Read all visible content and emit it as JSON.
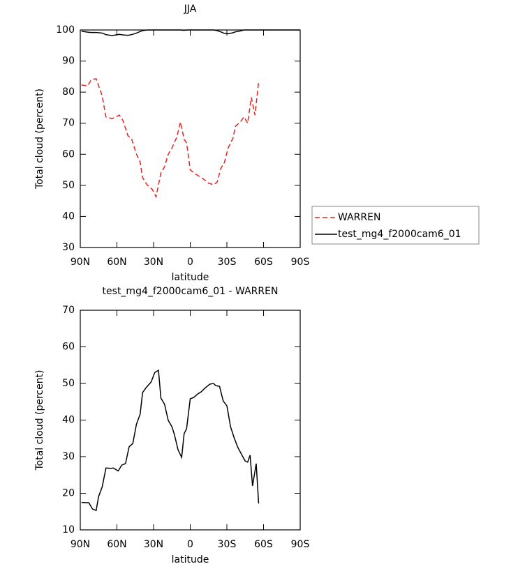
{
  "chart_data": [
    {
      "type": "line",
      "title": "JJA",
      "x_label": "latitude",
      "y_label": "Total cloud (percent)",
      "x": [
        89,
        84,
        81,
        77,
        72,
        69,
        64,
        61,
        58,
        55,
        51,
        48,
        44,
        41,
        39,
        35,
        31,
        28,
        24,
        21,
        18,
        15,
        11,
        8,
        5,
        3,
        0,
        -3,
        -7,
        -10,
        -15,
        -19,
        -22,
        -25,
        -28,
        -31,
        -35,
        -37,
        -41,
        -44,
        -47,
        -50,
        -53,
        -56,
        -60,
        -70,
        -80,
        -90
      ],
      "series": [
        {
          "name": "WARREN",
          "color": "#e8211d",
          "dashed": true,
          "values": [
            82.3,
            82,
            84,
            84.3,
            78.7,
            72,
            71.5,
            72,
            72.6,
            70.8,
            66,
            65,
            60,
            57.5,
            52.5,
            50,
            48.7,
            46.3,
            54,
            56,
            60,
            62,
            65.5,
            70.4,
            64.8,
            63.7,
            55,
            54,
            53,
            52.3,
            50.7,
            50.2,
            51,
            55.4,
            57.4,
            62,
            65.2,
            69,
            70.4,
            72,
            70,
            78.3,
            72.6,
            83.4,
            null,
            null,
            null,
            null
          ]
        },
        {
          "name": "test_mg4_f2000cam6_01",
          "color": "#000000",
          "dashed": false,
          "values": [
            99.6,
            99.3,
            99.2,
            99.2,
            99,
            98.5,
            98.2,
            98.4,
            98.6,
            98.4,
            98.3,
            98.5,
            99,
            99.5,
            99.8,
            100,
            100,
            100,
            100,
            100,
            100,
            100,
            100,
            100,
            99.9,
            100,
            100,
            100,
            100,
            100,
            100,
            100,
            99.8,
            99.4,
            98.9,
            98.8,
            99.1,
            99.4,
            99.7,
            100,
            100,
            100,
            100,
            100,
            100,
            100,
            100,
            100
          ]
        }
      ],
      "xlim": [
        90,
        -90
      ],
      "xticks": [
        {
          "value": 90,
          "label": "90N"
        },
        {
          "value": 60,
          "label": "60N"
        },
        {
          "value": 30,
          "label": "30N"
        },
        0,
        {
          "value": -30,
          "label": "30S"
        },
        {
          "value": -60,
          "label": "60S"
        },
        {
          "value": -90,
          "label": "90S"
        }
      ],
      "ylim": [
        30,
        100
      ],
      "yticks": [
        30,
        40,
        50,
        60,
        70,
        80,
        90,
        100
      ]
    },
    {
      "type": "line",
      "title": "test_mg4_f2000cam6_01 - WARREN",
      "x_label": "latitude",
      "y_label": "Total cloud (percent)",
      "x": [
        89,
        83,
        80,
        77,
        75,
        72,
        69,
        65,
        63,
        59,
        56,
        53,
        50,
        47,
        44,
        41,
        39,
        36,
        32,
        29,
        26,
        24,
        21,
        18,
        15,
        13,
        10,
        7,
        5,
        3,
        0,
        -3,
        -6,
        -9,
        -12,
        -16,
        -19,
        -21,
        -24,
        -27,
        -30,
        -33,
        -36,
        -39,
        -43,
        -45,
        -47,
        -49,
        -51,
        -54,
        -56
      ],
      "color": "#000000",
      "values": [
        17.5,
        17.4,
        15.7,
        15.3,
        19.1,
        21.8,
        26.9,
        26.8,
        26.9,
        26.1,
        27.7,
        28.1,
        32.7,
        33.6,
        38.9,
        41.6,
        47.5,
        48.9,
        50.4,
        53,
        53.6,
        46,
        44.3,
        39.9,
        38.2,
        36.1,
        31.9,
        29.8,
        36.3,
        37.6,
        45.8,
        46.2,
        47.1,
        47.7,
        48.7,
        49.8,
        50,
        49.4,
        49.2,
        45.2,
        43.9,
        38.2,
        35.1,
        32.5,
        30,
        28.8,
        28.5,
        30.4,
        22,
        28.1,
        17.2
      ],
      "xlim": [
        90,
        -90
      ],
      "xticks": [
        {
          "value": 90,
          "label": "90N"
        },
        {
          "value": 60,
          "label": "60N"
        },
        {
          "value": 30,
          "label": "30N"
        },
        0,
        {
          "value": -30,
          "label": "30S"
        },
        {
          "value": -60,
          "label": "60S"
        },
        {
          "value": -90,
          "label": "90S"
        }
      ],
      "ylim": [
        10,
        70
      ],
      "yticks": [
        10,
        20,
        30,
        40,
        50,
        60,
        70
      ]
    }
  ]
}
